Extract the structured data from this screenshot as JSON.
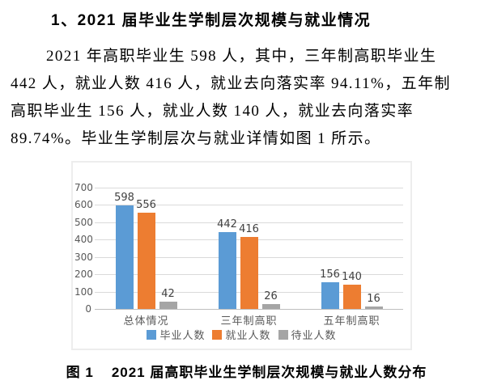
{
  "page": {
    "title": "1、2021 届毕业生学制层次规模与就业情况",
    "paragraph_lines": [
      "2021 年高职毕业生 598 人，其中，三年制高职毕业生",
      "442 人，就业人数 416 人，就业去向落实率 94.11%，五年制",
      "高职毕业生 156 人，就业人数 140 人，就业去向落实率",
      "89.74%。毕业生学制层次与就业详情如图 1 所示。"
    ],
    "caption_label": "图 1",
    "caption_text": "2021 届高职毕业生学制层次规模与就业人数分布"
  },
  "chart_data": {
    "type": "bar",
    "categories": [
      "总体情况",
      "三年制高职",
      "五年制高职"
    ],
    "series": [
      {
        "name": "毕业人数",
        "color": "#5B9BD5",
        "values": [
          598,
          442,
          156
        ]
      },
      {
        "name": "就业人数",
        "color": "#ED7D31",
        "values": [
          556,
          416,
          140
        ]
      },
      {
        "name": "待业人数",
        "color": "#A5A5A5",
        "values": [
          42,
          26,
          16
        ]
      }
    ],
    "title": "",
    "xlabel": "",
    "ylabel": "",
    "ylim": [
      0,
      700
    ],
    "yticks": [
      0,
      100,
      200,
      300,
      400,
      500,
      600,
      700
    ],
    "grid": true,
    "legend_position": "bottom",
    "data_labels": true,
    "colors": {
      "gridline": "#dadada",
      "axis_line": "#bfbfbf",
      "tick_text": "#595959",
      "data_label_text": "#404040"
    }
  }
}
